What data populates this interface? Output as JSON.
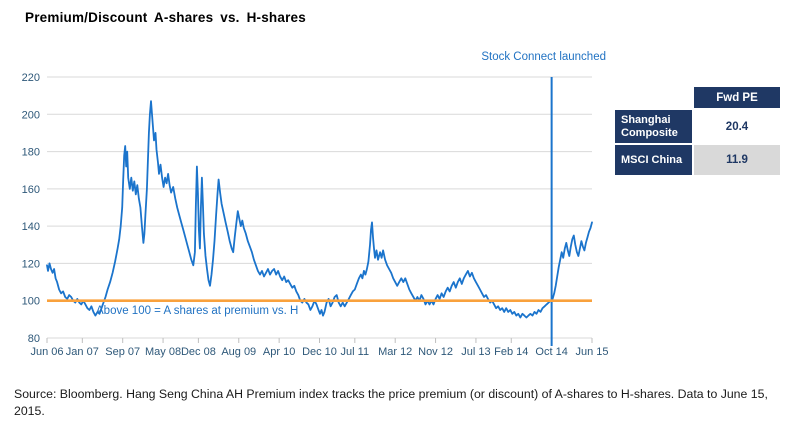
{
  "title": "Premium/Discount A-shares vs. H-shares",
  "annotations": {
    "stock_connect": "Stock Connect launched",
    "above_100": "Above 100 = A shares at premium vs. H"
  },
  "table": {
    "header": "Fwd PE",
    "rows": [
      {
        "label": "Shanghai Composite",
        "value": "20.4"
      },
      {
        "label": "MSCI China",
        "value": "11.9"
      }
    ]
  },
  "source": "Source: Bloomberg. Hang Seng China AH Premium index tracks the price premium (or discount) of A-shares to H-shares. Data to June 15, 2015.",
  "colors": {
    "line": "#1B74CC",
    "reference_orange": "#F9A13C",
    "axis_label": "#2E5879",
    "table_navy": "#1F3864",
    "grid": "#D9D9D9",
    "tick": "#BFBFBF",
    "annotation_blue": "#2273C3",
    "value_cell_gray": "#D9D9D9"
  },
  "chart_data": {
    "type": "line",
    "title": "Premium/Discount A-shares vs. H-shares",
    "series_name": "Hang Seng China AH Premium Index",
    "x_unit": "months since Jun 2006",
    "xlim": [
      0,
      108
    ],
    "ylim": [
      80,
      220
    ],
    "yticks": [
      80,
      100,
      120,
      140,
      160,
      180,
      200,
      220
    ],
    "grid": "horizontal",
    "legend": "none",
    "reference_line": 100,
    "event": {
      "m": 100,
      "label": "Stock Connect launched"
    },
    "xticks": [
      {
        "m": 0,
        "label": "Jun 06"
      },
      {
        "m": 7,
        "label": "Jan 07"
      },
      {
        "m": 15,
        "label": "Sep 07"
      },
      {
        "m": 23,
        "label": "May 08"
      },
      {
        "m": 30,
        "label": "Dec 08"
      },
      {
        "m": 38,
        "label": "Aug 09"
      },
      {
        "m": 46,
        "label": "Apr 10"
      },
      {
        "m": 54,
        "label": "Dec 10"
      },
      {
        "m": 61,
        "label": "Jul 11"
      },
      {
        "m": 69,
        "label": "Mar 12"
      },
      {
        "m": 77,
        "label": "Nov 12"
      },
      {
        "m": 85,
        "label": "Jul 13"
      },
      {
        "m": 92,
        "label": "Feb 14"
      },
      {
        "m": 100,
        "label": "Oct 14"
      },
      {
        "m": 108,
        "label": "Jun 15"
      }
    ],
    "points": [
      [
        0,
        119
      ],
      [
        0.2,
        116
      ],
      [
        0.5,
        120
      ],
      [
        0.8,
        117
      ],
      [
        1.1,
        115
      ],
      [
        1.4,
        117
      ],
      [
        1.7,
        112
      ],
      [
        2,
        110
      ],
      [
        2.4,
        106
      ],
      [
        2.8,
        104
      ],
      [
        3.2,
        105
      ],
      [
        3.6,
        102
      ],
      [
        4,
        101
      ],
      [
        4.4,
        103
      ],
      [
        4.8,
        102
      ],
      [
        5.2,
        100
      ],
      [
        5.6,
        99
      ],
      [
        6,
        101
      ],
      [
        6.4,
        99
      ],
      [
        6.8,
        98
      ],
      [
        7.2,
        100
      ],
      [
        7.6,
        98
      ],
      [
        8,
        96
      ],
      [
        8.4,
        95
      ],
      [
        8.8,
        97
      ],
      [
        9.2,
        94
      ],
      [
        9.6,
        92
      ],
      [
        10,
        94
      ],
      [
        10.4,
        93
      ],
      [
        10.8,
        96
      ],
      [
        11.2,
        99
      ],
      [
        11.6,
        102
      ],
      [
        12,
        106
      ],
      [
        12.5,
        110
      ],
      [
        13,
        115
      ],
      [
        13.5,
        121
      ],
      [
        14,
        128
      ],
      [
        14.3,
        133
      ],
      [
        14.6,
        140
      ],
      [
        14.9,
        150
      ],
      [
        15.1,
        165
      ],
      [
        15.3,
        178
      ],
      [
        15.5,
        183
      ],
      [
        15.7,
        172
      ],
      [
        15.9,
        180
      ],
      [
        16.1,
        166
      ],
      [
        16.4,
        160
      ],
      [
        16.7,
        166
      ],
      [
        17,
        159
      ],
      [
        17.3,
        164
      ],
      [
        17.6,
        157
      ],
      [
        17.9,
        162
      ],
      [
        18.2,
        155
      ],
      [
        18.5,
        150
      ],
      [
        18.8,
        140
      ],
      [
        19.1,
        131
      ],
      [
        19.3,
        136
      ],
      [
        19.5,
        146
      ],
      [
        19.8,
        160
      ],
      [
        20,
        175
      ],
      [
        20.2,
        190
      ],
      [
        20.4,
        200
      ],
      [
        20.6,
        207
      ],
      [
        20.8,
        200
      ],
      [
        21,
        193
      ],
      [
        21.2,
        186
      ],
      [
        21.5,
        190
      ],
      [
        21.7,
        181
      ],
      [
        22,
        174
      ],
      [
        22.2,
        168
      ],
      [
        22.5,
        173
      ],
      [
        22.8,
        166
      ],
      [
        23.1,
        161
      ],
      [
        23.4,
        166
      ],
      [
        23.7,
        163
      ],
      [
        24,
        168
      ],
      [
        24.3,
        162
      ],
      [
        24.6,
        158
      ],
      [
        25,
        161
      ],
      [
        25.4,
        155
      ],
      [
        25.8,
        150
      ],
      [
        26.2,
        146
      ],
      [
        26.6,
        142
      ],
      [
        27,
        138
      ],
      [
        27.4,
        134
      ],
      [
        27.8,
        130
      ],
      [
        28.2,
        126
      ],
      [
        28.6,
        122
      ],
      [
        29,
        119
      ],
      [
        29.3,
        126
      ],
      [
        29.5,
        152
      ],
      [
        29.7,
        172
      ],
      [
        29.9,
        158
      ],
      [
        30.1,
        138
      ],
      [
        30.3,
        128
      ],
      [
        30.5,
        150
      ],
      [
        30.7,
        166
      ],
      [
        30.9,
        152
      ],
      [
        31.1,
        136
      ],
      [
        31.4,
        124
      ],
      [
        31.7,
        117
      ],
      [
        32,
        111
      ],
      [
        32.3,
        108
      ],
      [
        32.6,
        114
      ],
      [
        32.9,
        122
      ],
      [
        33.2,
        132
      ],
      [
        33.5,
        146
      ],
      [
        33.8,
        158
      ],
      [
        34,
        165
      ],
      [
        34.3,
        158
      ],
      [
        34.6,
        152
      ],
      [
        35,
        147
      ],
      [
        35.4,
        142
      ],
      [
        35.8,
        137
      ],
      [
        36.2,
        132
      ],
      [
        36.6,
        128
      ],
      [
        36.9,
        126
      ],
      [
        37.2,
        134
      ],
      [
        37.5,
        141
      ],
      [
        37.8,
        148
      ],
      [
        38.1,
        144
      ],
      [
        38.4,
        140
      ],
      [
        38.7,
        143
      ],
      [
        39,
        139
      ],
      [
        39.4,
        136
      ],
      [
        39.8,
        132
      ],
      [
        40.2,
        129
      ],
      [
        40.6,
        126
      ],
      [
        41,
        122
      ],
      [
        41.4,
        119
      ],
      [
        41.8,
        116
      ],
      [
        42.2,
        114
      ],
      [
        42.6,
        116
      ],
      [
        43,
        113
      ],
      [
        43.4,
        115
      ],
      [
        43.8,
        117
      ],
      [
        44.2,
        114
      ],
      [
        44.6,
        116
      ],
      [
        45,
        117
      ],
      [
        45.4,
        114
      ],
      [
        45.8,
        116
      ],
      [
        46.2,
        113
      ],
      [
        46.6,
        111
      ],
      [
        47,
        113
      ],
      [
        47.4,
        110
      ],
      [
        47.8,
        111
      ],
      [
        48.2,
        109
      ],
      [
        48.6,
        107
      ],
      [
        49,
        108
      ],
      [
        49.4,
        105
      ],
      [
        49.8,
        103
      ],
      [
        50.2,
        100
      ],
      [
        50.6,
        99
      ],
      [
        51,
        101
      ],
      [
        51.4,
        99
      ],
      [
        51.8,
        98
      ],
      [
        52.2,
        95
      ],
      [
        52.6,
        97
      ],
      [
        53,
        100
      ],
      [
        53.4,
        98
      ],
      [
        53.8,
        95
      ],
      [
        54.1,
        93
      ],
      [
        54.4,
        95
      ],
      [
        54.7,
        92
      ],
      [
        55,
        94
      ],
      [
        55.4,
        99
      ],
      [
        55.8,
        101
      ],
      [
        56.2,
        97
      ],
      [
        56.6,
        99
      ],
      [
        57,
        102
      ],
      [
        57.4,
        103
      ],
      [
        57.8,
        99
      ],
      [
        58.2,
        97
      ],
      [
        58.6,
        99
      ],
      [
        59,
        97
      ],
      [
        59.4,
        99
      ],
      [
        59.8,
        101
      ],
      [
        60.2,
        103
      ],
      [
        60.6,
        105
      ],
      [
        61,
        106
      ],
      [
        61.4,
        109
      ],
      [
        61.8,
        112
      ],
      [
        62.2,
        114
      ],
      [
        62.5,
        112
      ],
      [
        62.8,
        116
      ],
      [
        63.1,
        114
      ],
      [
        63.4,
        117
      ],
      [
        63.7,
        121
      ],
      [
        64,
        130
      ],
      [
        64.2,
        138
      ],
      [
        64.4,
        142
      ],
      [
        64.6,
        134
      ],
      [
        64.8,
        128
      ],
      [
        65,
        123
      ],
      [
        65.3,
        127
      ],
      [
        65.6,
        122
      ],
      [
        66,
        126
      ],
      [
        66.3,
        123
      ],
      [
        66.6,
        127
      ],
      [
        67,
        122
      ],
      [
        67.4,
        119
      ],
      [
        67.8,
        117
      ],
      [
        68.2,
        115
      ],
      [
        68.6,
        112
      ],
      [
        69,
        110
      ],
      [
        69.4,
        108
      ],
      [
        69.8,
        110
      ],
      [
        70.2,
        112
      ],
      [
        70.6,
        110
      ],
      [
        71,
        112
      ],
      [
        71.4,
        109
      ],
      [
        71.8,
        106
      ],
      [
        72.2,
        104
      ],
      [
        72.6,
        102
      ],
      [
        73,
        100
      ],
      [
        73.4,
        102
      ],
      [
        73.8,
        100
      ],
      [
        74.2,
        103
      ],
      [
        74.6,
        101
      ],
      [
        75,
        98
      ],
      [
        75.4,
        100
      ],
      [
        75.8,
        98
      ],
      [
        76.2,
        100
      ],
      [
        76.6,
        98
      ],
      [
        77,
        101
      ],
      [
        77.4,
        103
      ],
      [
        77.8,
        101
      ],
      [
        78.2,
        104
      ],
      [
        78.6,
        102
      ],
      [
        79,
        105
      ],
      [
        79.4,
        107
      ],
      [
        79.8,
        105
      ],
      [
        80.2,
        108
      ],
      [
        80.6,
        110
      ],
      [
        81,
        107
      ],
      [
        81.4,
        110
      ],
      [
        81.8,
        112
      ],
      [
        82.2,
        109
      ],
      [
        82.6,
        112
      ],
      [
        83,
        114
      ],
      [
        83.4,
        116
      ],
      [
        83.8,
        113
      ],
      [
        84.2,
        115
      ],
      [
        84.6,
        112
      ],
      [
        85,
        110
      ],
      [
        85.4,
        108
      ],
      [
        85.8,
        106
      ],
      [
        86.2,
        104
      ],
      [
        86.6,
        102
      ],
      [
        87,
        103
      ],
      [
        87.4,
        101
      ],
      [
        87.8,
        99
      ],
      [
        88.2,
        100
      ],
      [
        88.6,
        98
      ],
      [
        89,
        96
      ],
      [
        89.4,
        97
      ],
      [
        89.8,
        95
      ],
      [
        90.2,
        96
      ],
      [
        90.6,
        94
      ],
      [
        91,
        96
      ],
      [
        91.4,
        94
      ],
      [
        91.8,
        95
      ],
      [
        92.2,
        93
      ],
      [
        92.6,
        94
      ],
      [
        93,
        92
      ],
      [
        93.4,
        93
      ],
      [
        93.8,
        91
      ],
      [
        94.2,
        93
      ],
      [
        94.6,
        92
      ],
      [
        95,
        91
      ],
      [
        95.4,
        92
      ],
      [
        95.8,
        93
      ],
      [
        96.2,
        92
      ],
      [
        96.6,
        94
      ],
      [
        97,
        93
      ],
      [
        97.4,
        95
      ],
      [
        97.8,
        94
      ],
      [
        98.2,
        96
      ],
      [
        98.6,
        97
      ],
      [
        99,
        98
      ],
      [
        99.4,
        99
      ],
      [
        99.8,
        100
      ],
      [
        100.2,
        101
      ],
      [
        100.5,
        104
      ],
      [
        100.8,
        108
      ],
      [
        101.1,
        113
      ],
      [
        101.4,
        118
      ],
      [
        101.7,
        122
      ],
      [
        102,
        126
      ],
      [
        102.3,
        123
      ],
      [
        102.6,
        128
      ],
      [
        102.9,
        131
      ],
      [
        103.2,
        127
      ],
      [
        103.5,
        124
      ],
      [
        103.8,
        129
      ],
      [
        104.1,
        133
      ],
      [
        104.4,
        135
      ],
      [
        104.7,
        130
      ],
      [
        105,
        126
      ],
      [
        105.3,
        124
      ],
      [
        105.6,
        128
      ],
      [
        105.9,
        132
      ],
      [
        106.2,
        129
      ],
      [
        106.5,
        127
      ],
      [
        106.8,
        131
      ],
      [
        107.1,
        134
      ],
      [
        107.4,
        137
      ],
      [
        107.7,
        139
      ],
      [
        108,
        142
      ]
    ]
  }
}
